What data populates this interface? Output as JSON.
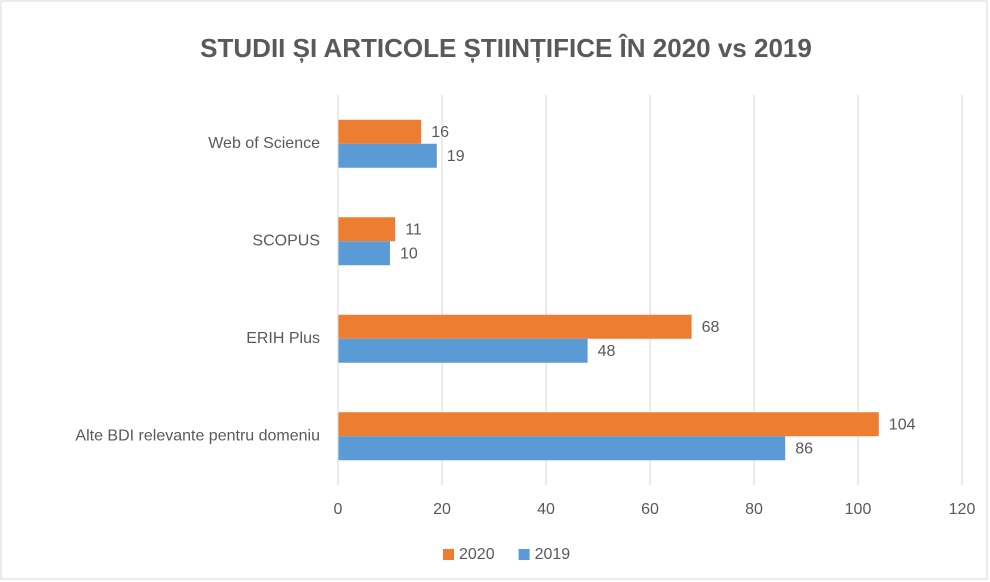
{
  "chart_data": {
    "type": "bar",
    "orientation": "horizontal",
    "title": "STUDII ȘI ARTICOLE ȘTIINȚIFICE ÎN 2020 vs 2019",
    "categories": [
      "Web of Science",
      "SCOPUS",
      "ERIH Plus",
      "Alte BDI relevante pentru domeniu"
    ],
    "series": [
      {
        "name": "2020",
        "color": "#ed7d31",
        "values": [
          16,
          11,
          68,
          104
        ]
      },
      {
        "name": "2019",
        "color": "#5b9bd5",
        "values": [
          19,
          10,
          48,
          86
        ]
      }
    ],
    "xlim": [
      0,
      120
    ],
    "xticks": [
      0,
      20,
      40,
      60,
      80,
      100,
      120
    ],
    "grid": true,
    "legend": "bottom"
  }
}
